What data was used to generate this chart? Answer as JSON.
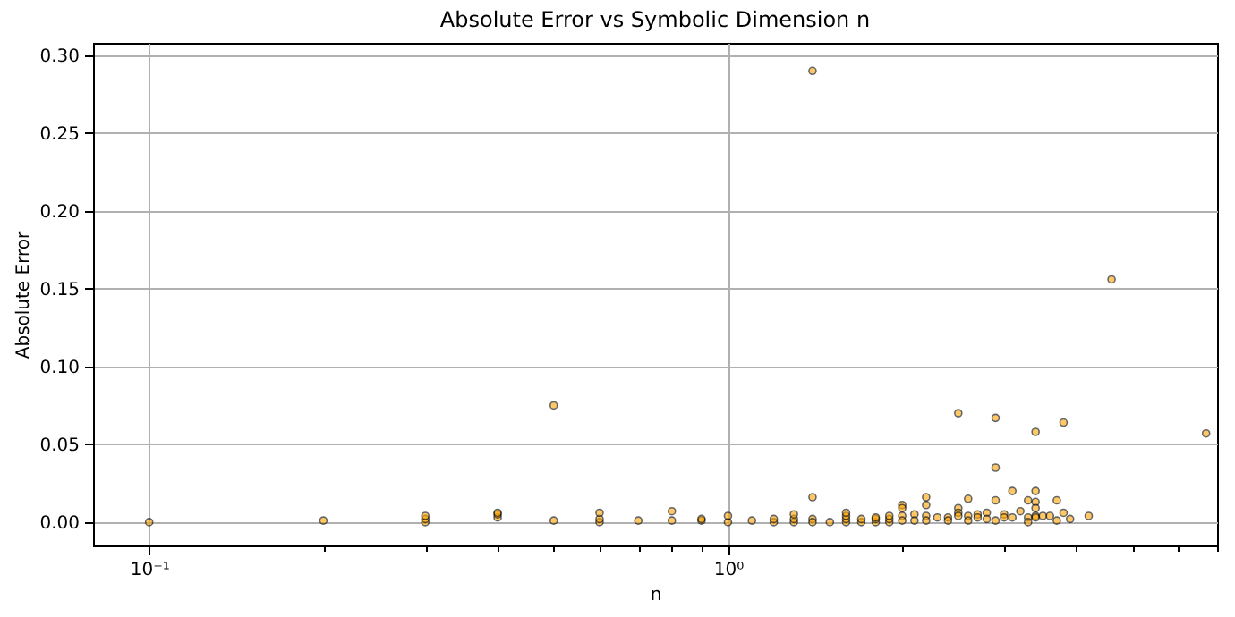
{
  "chart_data": {
    "type": "scatter",
    "title": "Absolute Error vs Symbolic Dimension n",
    "xlabel": "n",
    "ylabel": "Absolute Error",
    "log": "x",
    "grid": true,
    "marker": "circle",
    "xlim": [
      0.08,
      7
    ],
    "ylim": [
      -0.015,
      0.308
    ],
    "xticks": [
      {
        "value": 0.1,
        "label": "10⁻¹"
      },
      {
        "value": 0.2,
        "label": null
      },
      {
        "value": 0.3,
        "label": null
      },
      {
        "value": 0.4,
        "label": null
      },
      {
        "value": 0.5,
        "label": null
      },
      {
        "value": 0.6,
        "label": null
      },
      {
        "value": 0.7,
        "label": null
      },
      {
        "value": 0.8,
        "label": null
      },
      {
        "value": 0.9,
        "label": null
      },
      {
        "value": 1,
        "label": "10⁰"
      },
      {
        "value": 2,
        "label": null
      },
      {
        "value": 3,
        "label": null
      },
      {
        "value": 4,
        "label": null
      },
      {
        "value": 5,
        "label": null
      },
      {
        "value": 6,
        "label": null
      },
      {
        "value": 7,
        "label": null
      }
    ],
    "yticks": [
      {
        "value": 0,
        "label": "0.00"
      },
      {
        "value": 0.05,
        "label": "0.05"
      },
      {
        "value": 0.1,
        "label": "0.10"
      },
      {
        "value": 0.15,
        "label": "0.15"
      },
      {
        "value": 0.2,
        "label": "0.20"
      },
      {
        "value": 0.25,
        "label": "0.25"
      },
      {
        "value": 0.3,
        "label": "0.30"
      }
    ],
    "series": [
      {
        "color": "#ffa500",
        "x": [
          0.1,
          0.2,
          0.3,
          0.3,
          0.3,
          0.4,
          0.4,
          0.4,
          0.5,
          0.5,
          0.6,
          0.6,
          0.6,
          0.7,
          0.8,
          0.8,
          0.9,
          0.9,
          1.0,
          1.0,
          1.1,
          1.2,
          1.2,
          1.3,
          1.3,
          1.3,
          1.4,
          1.4,
          1.4,
          1.4,
          1.5,
          1.6,
          1.6,
          1.6,
          1.6,
          1.7,
          1.7,
          1.8,
          1.8,
          1.8,
          1.9,
          1.9,
          1.9,
          2.0,
          2.0,
          2.0,
          2.0,
          2.1,
          2.1,
          2.2,
          2.2,
          2.2,
          2.2,
          2.3,
          2.4,
          2.4,
          2.5,
          2.5,
          2.5,
          2.5,
          2.6,
          2.6,
          2.6,
          2.7,
          2.7,
          2.8,
          2.8,
          2.9,
          2.9,
          2.9,
          2.9,
          3.0,
          3.0,
          3.1,
          3.1,
          3.2,
          3.3,
          3.3,
          3.3,
          3.4,
          3.4,
          3.4,
          3.4,
          3.4,
          3.4,
          3.5,
          3.6,
          3.7,
          3.7,
          3.8,
          3.8,
          3.9,
          4.2,
          4.6,
          6.7
        ],
        "values": [
          0,
          0.001,
          0,
          0.002,
          0.004,
          0.003,
          0.005,
          0.006,
          0.075,
          0.001,
          0,
          0.002,
          0.006,
          0.001,
          0.001,
          0.007,
          0.001,
          0.002,
          0,
          0.004,
          0.001,
          0,
          0.002,
          0,
          0.002,
          0.005,
          0.29,
          0.016,
          0.002,
          0,
          0,
          0,
          0.002,
          0.004,
          0.006,
          0,
          0.002,
          0,
          0.002,
          0.003,
          0,
          0.002,
          0.004,
          0.011,
          0.009,
          0.004,
          0.001,
          0.005,
          0.001,
          0.016,
          0.011,
          0.004,
          0.001,
          0.003,
          0.003,
          0.001,
          0.07,
          0.009,
          0.006,
          0.004,
          0.015,
          0.004,
          0.001,
          0.005,
          0.003,
          0.006,
          0.002,
          0.067,
          0.035,
          0.014,
          0.001,
          0.005,
          0.003,
          0.02,
          0.003,
          0.007,
          0.014,
          0.003,
          0,
          0.058,
          0.02,
          0.013,
          0.009,
          0.004,
          0.003,
          0.004,
          0.004,
          0.014,
          0.001,
          0.064,
          0.006,
          0.002,
          0.004,
          0.156,
          0.057
        ]
      }
    ]
  }
}
